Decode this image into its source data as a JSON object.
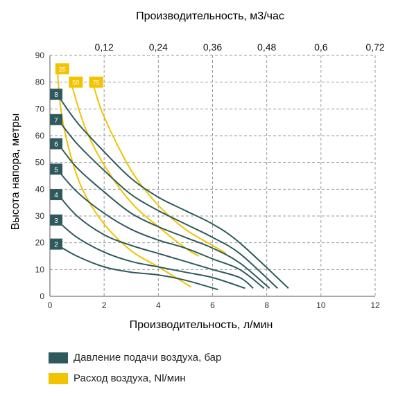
{
  "chart_data": {
    "type": "line",
    "top_axis_title": "Производительность, м3/час",
    "top_tick_labels": [
      "0,12",
      "0,24",
      "0,36",
      "0,48",
      "0,6",
      "0,72"
    ],
    "xlabel": "Производительность, л/мин",
    "ylabel": "Высота напора, метры",
    "x_ticks": [
      0,
      2,
      4,
      6,
      8,
      10,
      12
    ],
    "y_ticks": [
      0,
      10,
      20,
      30,
      40,
      50,
      60,
      70,
      80,
      90
    ],
    "xlim": [
      0,
      12
    ],
    "ylim": [
      0,
      90
    ],
    "grid": true,
    "pressure_color": "#2f5a5d",
    "air_color": "#f2c300",
    "legend": [
      {
        "label": "Давление подачи воздуха, бар",
        "color": "#2f5a5d"
      },
      {
        "label": "Расход воздуха, Nl/мин",
        "color": "#f2c300"
      }
    ],
    "pressure_series": [
      {
        "name": "2",
        "label_y": 19.5,
        "points": [
          [
            0.3,
            19
          ],
          [
            1,
            15
          ],
          [
            2,
            11
          ],
          [
            3,
            9
          ],
          [
            4,
            8
          ],
          [
            5,
            6
          ],
          [
            6.2,
            2.5
          ]
        ]
      },
      {
        "name": "3",
        "label_y": 28.5,
        "points": [
          [
            0.3,
            28
          ],
          [
            1,
            22
          ],
          [
            2,
            16.5
          ],
          [
            3,
            13
          ],
          [
            4,
            11
          ],
          [
            5,
            9
          ],
          [
            6,
            7
          ],
          [
            7.2,
            3
          ]
        ]
      },
      {
        "name": "4",
        "label_y": 38,
        "points": [
          [
            0.3,
            38
          ],
          [
            1,
            30
          ],
          [
            2,
            23
          ],
          [
            3,
            19
          ],
          [
            4,
            16
          ],
          [
            5,
            13
          ],
          [
            6,
            10
          ],
          [
            7,
            7
          ],
          [
            7.5,
            3
          ]
        ]
      },
      {
        "name": "5",
        "label_y": 47.5,
        "points": [
          [
            0.3,
            47
          ],
          [
            1,
            39
          ],
          [
            2,
            31
          ],
          [
            3,
            25
          ],
          [
            4,
            21
          ],
          [
            5,
            18
          ],
          [
            6,
            14
          ],
          [
            7,
            10
          ],
          [
            7.9,
            3
          ]
        ]
      },
      {
        "name": "6",
        "label_y": 57,
        "points": [
          [
            0.3,
            57
          ],
          [
            1,
            48
          ],
          [
            2,
            39
          ],
          [
            3,
            31
          ],
          [
            4,
            26
          ],
          [
            5,
            22
          ],
          [
            6,
            18
          ],
          [
            7,
            12.5
          ],
          [
            8.1,
            3
          ]
        ]
      },
      {
        "name": "7",
        "label_y": 66,
        "points": [
          [
            0.3,
            66
          ],
          [
            1,
            57
          ],
          [
            2,
            47
          ],
          [
            3,
            38
          ],
          [
            4,
            32
          ],
          [
            5,
            27
          ],
          [
            6,
            22
          ],
          [
            7,
            16
          ],
          [
            8.4,
            3
          ]
        ]
      },
      {
        "name": "8",
        "label_y": 75.5,
        "points": [
          [
            0.3,
            75
          ],
          [
            1,
            65
          ],
          [
            2,
            54
          ],
          [
            3,
            44
          ],
          [
            4,
            37
          ],
          [
            5,
            32
          ],
          [
            6,
            27
          ],
          [
            7,
            20
          ],
          [
            8.8,
            3
          ]
        ]
      }
    ],
    "air_series": [
      {
        "name": "25",
        "label_x": 0.25,
        "label_y": 85,
        "points": [
          [
            0.28,
            84
          ],
          [
            0.4,
            70
          ],
          [
            0.7,
            55
          ],
          [
            1.2,
            40
          ],
          [
            2,
            27
          ],
          [
            3,
            17
          ],
          [
            4,
            11
          ],
          [
            5.2,
            3.5
          ]
        ]
      },
      {
        "name": "50",
        "label_x": 0.75,
        "label_y": 80,
        "points": [
          [
            0.8,
            79
          ],
          [
            1.3,
            63
          ],
          [
            2,
            49
          ],
          [
            3,
            35
          ],
          [
            4,
            26
          ],
          [
            5,
            18
          ],
          [
            5.5,
            15
          ]
        ]
      },
      {
        "name": "75",
        "label_x": 1.5,
        "label_y": 80,
        "points": [
          [
            1.6,
            79
          ],
          [
            2,
            67
          ],
          [
            3,
            47
          ],
          [
            4,
            34
          ],
          [
            5,
            25
          ],
          [
            6,
            19
          ],
          [
            6.5,
            16
          ]
        ]
      }
    ]
  }
}
